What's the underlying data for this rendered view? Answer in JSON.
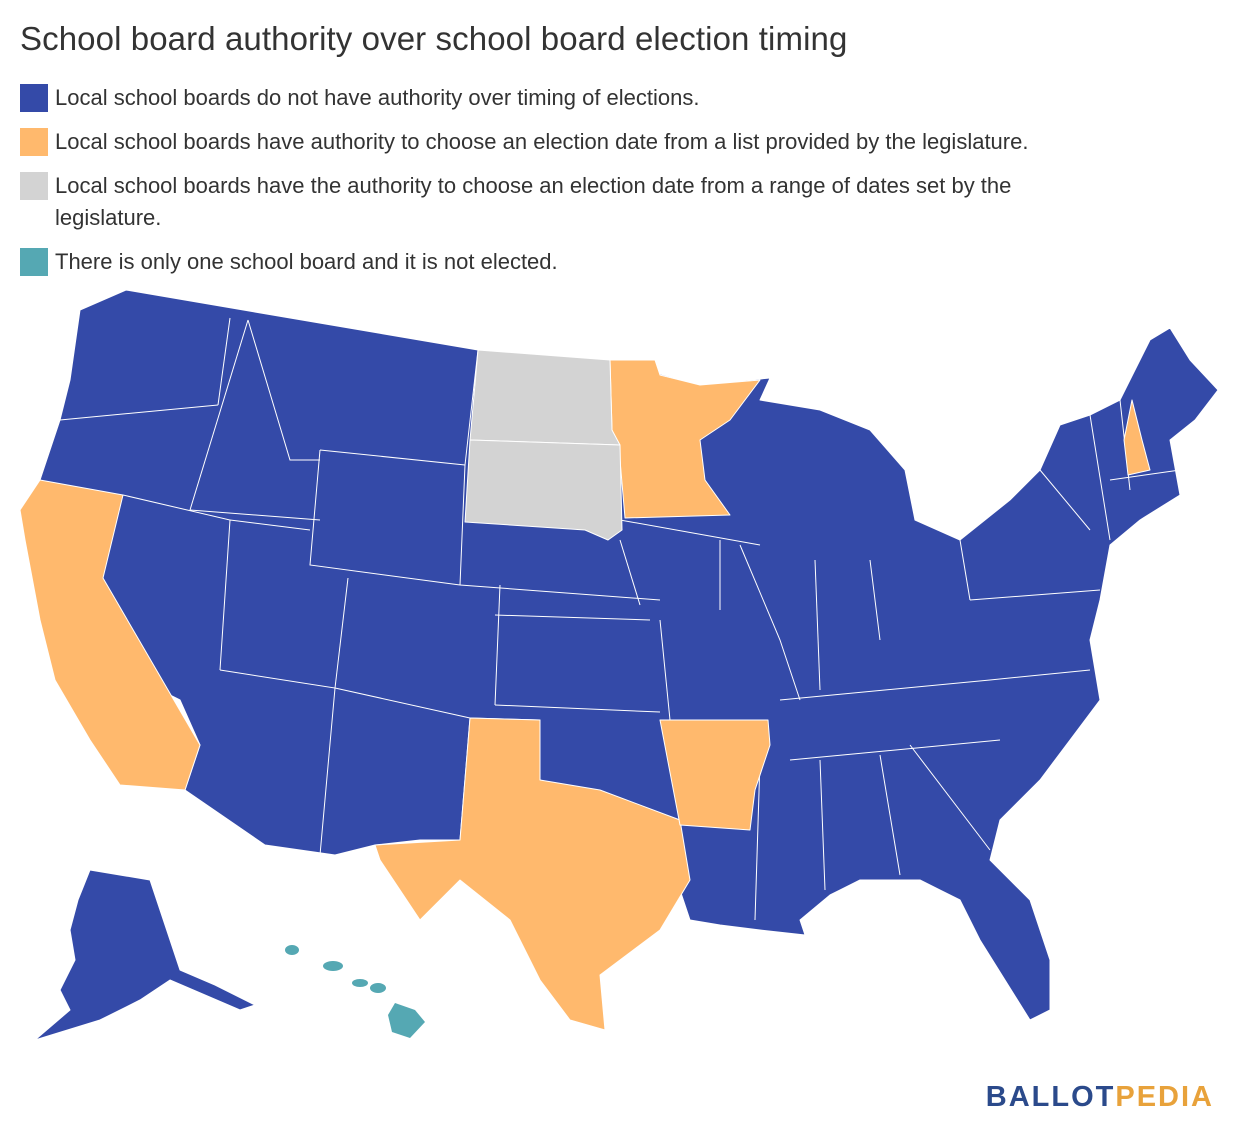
{
  "title": "School board authority over school board election timing",
  "legend": [
    {
      "label": "Local school boards do not have authority over timing of elections.",
      "color": "#344aa8"
    },
    {
      "label": "Local school boards have authority to choose an election date from a list provided by the legislature.",
      "color": "#ffb96d"
    },
    {
      "label": "Local school boards have the authority to choose an election date from a range of dates set by the legislature.",
      "color": "#d3d3d3"
    },
    {
      "label": "There is only one school board and it is not elected.",
      "color": "#55a8b3"
    }
  ],
  "state_categories": {
    "list_provided_by_legislature": [
      "California",
      "Texas",
      "Arkansas",
      "Minnesota",
      "New Hampshire"
    ],
    "range_of_dates": [
      "North Dakota",
      "South Dakota"
    ],
    "single_unelected_board": [
      "Hawaii"
    ],
    "no_authority": "all other states"
  },
  "logo": {
    "part_a": "BALLOT",
    "part_b": "PEDIA"
  }
}
